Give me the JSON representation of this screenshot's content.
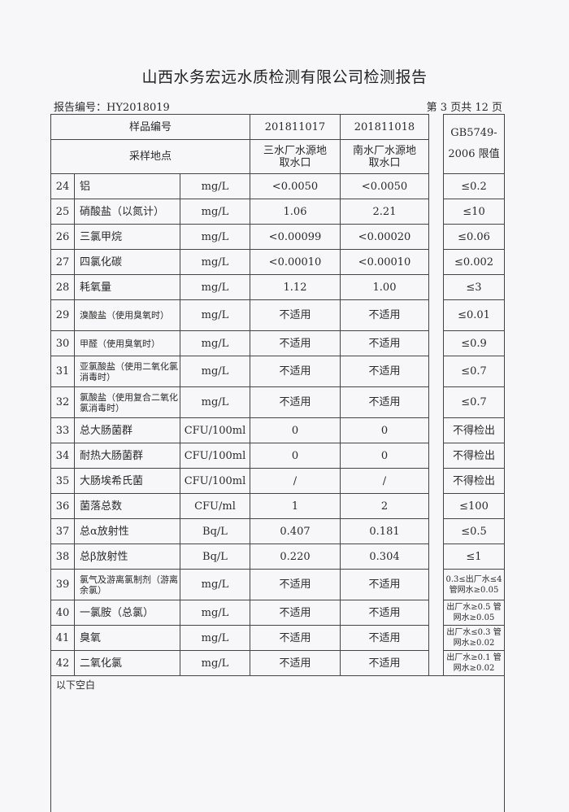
{
  "title": "山西水务宏远水质检测有限公司检测报告",
  "report_no": "报告编号：HY2018019",
  "page_no": "第 3 页共 12 页",
  "header": {
    "sample_no_label": "样品编号",
    "sample1": "201811017",
    "sample2": "201811018",
    "limit_label": "GB5749-2006 限值",
    "location_label": "采样地点",
    "location1": "三水厂水源地取水口",
    "location2": "南水厂水源地取水口"
  },
  "rows": [
    {
      "no": "24",
      "name": "铝",
      "unit": "mg/L",
      "v1": "<0.0050",
      "v2": "<0.0050",
      "limit": "≤0.2"
    },
    {
      "no": "25",
      "name": "硝酸盐（以氮计）",
      "unit": "mg/L",
      "v1": "1.06",
      "v2": "2.21",
      "limit": "≤10"
    },
    {
      "no": "26",
      "name": "三氯甲烷",
      "unit": "mg/L",
      "v1": "<0.00099",
      "v2": "<0.00020",
      "limit": "≤0.06"
    },
    {
      "no": "27",
      "name": "四氯化碳",
      "unit": "mg/L",
      "v1": "<0.00010",
      "v2": "<0.00010",
      "limit": "≤0.002"
    },
    {
      "no": "28",
      "name": "耗氧量",
      "unit": "mg/L",
      "v1": "1.12",
      "v2": "1.00",
      "limit": "≤3"
    },
    {
      "no": "29",
      "name": "溴酸盐（使用臭氧时）",
      "unit": "mg/L",
      "v1": "不适用",
      "v2": "不适用",
      "limit": "≤0.01"
    },
    {
      "no": "30",
      "name": "甲醛（使用臭氧时）",
      "unit": "mg/L",
      "v1": "不适用",
      "v2": "不适用",
      "limit": "≤0.9"
    },
    {
      "no": "31",
      "name": "亚氯酸盐（使用二氧化氯消毒时）",
      "unit": "mg/L",
      "v1": "不适用",
      "v2": "不适用",
      "limit": "≤0.7"
    },
    {
      "no": "32",
      "name": "氯酸盐（使用复合二氧化氯消毒时）",
      "unit": "mg/L",
      "v1": "不适用",
      "v2": "不适用",
      "limit": "≤0.7"
    },
    {
      "no": "33",
      "name": "总大肠菌群",
      "unit": "CFU/100ml",
      "v1": "0",
      "v2": "0",
      "limit": "不得检出"
    },
    {
      "no": "34",
      "name": "耐热大肠菌群",
      "unit": "CFU/100ml",
      "v1": "0",
      "v2": "0",
      "limit": "不得检出"
    },
    {
      "no": "35",
      "name": "大肠埃希氏菌",
      "unit": "CFU/100ml",
      "v1": "/",
      "v2": "/",
      "limit": "不得检出"
    },
    {
      "no": "36",
      "name": "菌落总数",
      "unit": "CFU/ml",
      "v1": "1",
      "v2": "2",
      "limit": "≤100"
    },
    {
      "no": "37",
      "name": "总α放射性",
      "unit": "Bq/L",
      "v1": "0.407",
      "v2": "0.181",
      "limit": "≤0.5"
    },
    {
      "no": "38",
      "name": "总β放射性",
      "unit": "Bq/L",
      "v1": "0.220",
      "v2": "0.304",
      "limit": "≤1"
    },
    {
      "no": "39",
      "name": "氯气及游离氯制剂（游离余氯）",
      "unit": "mg/L",
      "v1": "不适用",
      "v2": "不适用",
      "limit": "0.3≤出厂水≤4 管网水≥0.05"
    },
    {
      "no": "40",
      "name": "一氯胺（总氯）",
      "unit": "mg/L",
      "v1": "不适用",
      "v2": "不适用",
      "limit": "出厂水≥0.5 管网水≥0.05"
    },
    {
      "no": "41",
      "name": "臭氧",
      "unit": "mg/L",
      "v1": "不适用",
      "v2": "不适用",
      "limit": "出厂水≤0.3 管网水≥0.02"
    },
    {
      "no": "42",
      "name": "二氧化氯",
      "unit": "mg/L",
      "v1": "不适用",
      "v2": "不适用",
      "limit": "出厂水≥0.1 管网水≥0.02"
    }
  ],
  "footer_note": "以下空白"
}
